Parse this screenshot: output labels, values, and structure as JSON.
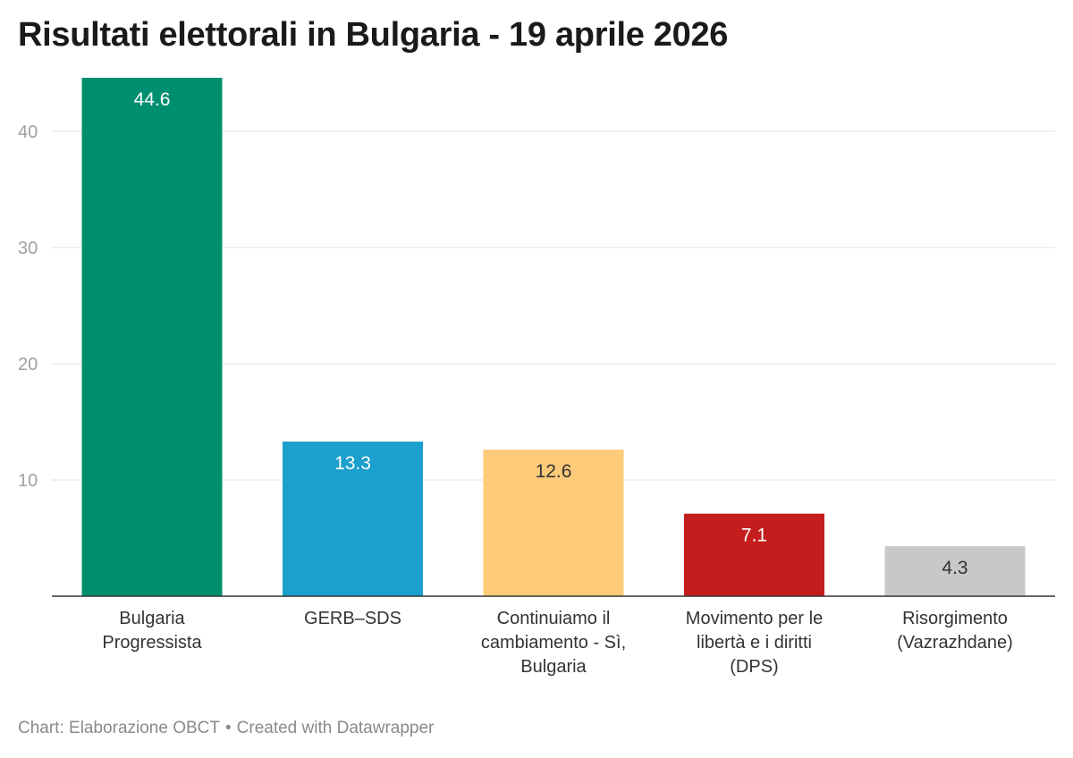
{
  "chart_data": {
    "type": "bar",
    "title": "Risultati elettorali in Bulgaria - 19 aprile 2026",
    "categories": [
      [
        "Bulgaria",
        "Progressista"
      ],
      [
        "GERB–SDS"
      ],
      [
        "Continuiamo il",
        "cambiamento - Sì,",
        "Bulgaria"
      ],
      [
        "Movimento per le",
        "libertà e i diritti",
        "(DPS)"
      ],
      [
        "Risorgimento",
        "(Vazrazhdane)"
      ]
    ],
    "values": [
      44.6,
      13.3,
      12.6,
      7.1,
      4.3
    ],
    "value_labels": [
      "44.6",
      "13.3",
      "12.6",
      "7.1",
      "4.3"
    ],
    "colors": [
      "#008f6e",
      "#1b9fcc",
      "#fdca79",
      "#c41d1d",
      "#c8c8c8"
    ],
    "label_colors": [
      "#ffffff",
      "#ffffff",
      "#333333",
      "#ffffff",
      "#333333"
    ],
    "yticks": [
      10,
      20,
      30,
      40
    ],
    "ytick_labels": [
      "10",
      "20",
      "30",
      "40"
    ],
    "ylim": [
      0,
      44.6
    ],
    "grid": true,
    "xlabel": "",
    "ylabel": ""
  },
  "footer": {
    "source": "Chart: Elaborazione OBCT",
    "separator": "•",
    "credit": "Created with Datawrapper"
  }
}
